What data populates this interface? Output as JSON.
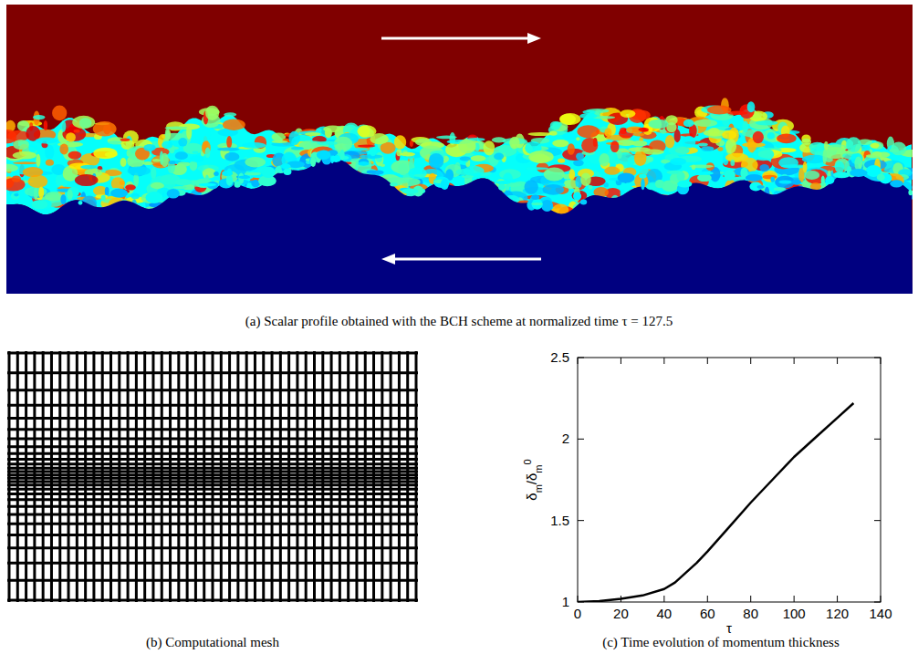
{
  "captions": {
    "a": "(a) Scalar profile obtained with the BCH scheme at normalized time τ = 127.5",
    "b": "(b) Computational mesh",
    "c": "(c) Time evolution of momentum thickness"
  },
  "chart_data": {
    "type": "line",
    "xlabel": "τ",
    "ylabel": "δm/δm0",
    "x": [
      0,
      10,
      20,
      30,
      40,
      45,
      50,
      55,
      60,
      70,
      80,
      90,
      100,
      110,
      120,
      127.5
    ],
    "series": [
      {
        "color": "#000000",
        "values": [
          1.0,
          1.005,
          1.02,
          1.04,
          1.08,
          1.12,
          1.18,
          1.24,
          1.31,
          1.46,
          1.61,
          1.75,
          1.89,
          2.01,
          2.13,
          2.22
        ]
      }
    ],
    "xlim": [
      0,
      140
    ],
    "ylim": [
      1,
      2.5
    ],
    "xticks": [
      0,
      20,
      40,
      60,
      80,
      100,
      120,
      140
    ],
    "yticks": [
      1,
      1.5,
      2,
      2.5
    ]
  }
}
